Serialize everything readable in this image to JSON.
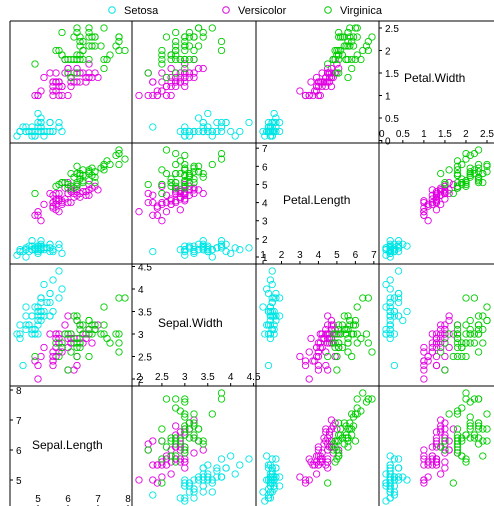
{
  "chart_data": {
    "type": "scatter",
    "layout": "scatterplot-matrix",
    "variables": [
      "Sepal.Length",
      "Sepal.Width",
      "Petal.Length",
      "Petal.Width"
    ],
    "diagonal_labels": [
      "Petal.Width",
      "Petal.Length",
      "Sepal.Width",
      "Sepal.Length"
    ],
    "legend": {
      "placement": "top",
      "entries": [
        {
          "name": "Setosa",
          "color": "#00e5e5"
        },
        {
          "name": "Versicolor",
          "color": "#e100e1"
        },
        {
          "name": "Virginica",
          "color": "#00cc00"
        }
      ]
    },
    "ranges": {
      "Sepal.Length": [
        4.3,
        7.9
      ],
      "Sepal.Width": [
        2.0,
        4.4
      ],
      "Petal.Length": [
        1.0,
        6.9
      ],
      "Petal.Width": [
        0.1,
        2.5
      ]
    },
    "ticks": {
      "Sepal.Length": {
        "left": [
          "5",
          "6",
          "7",
          "8"
        ],
        "bottom": [
          "5",
          "6",
          "7",
          "8"
        ]
      },
      "Sepal.Width": {
        "left": [
          "2",
          "2.5",
          "3",
          "3.5",
          "4",
          "4.5"
        ],
        "bottom": [
          "2",
          "2.5",
          "3",
          "3.5",
          "4",
          "4.5"
        ]
      },
      "Petal.Length": {
        "left": [
          "1",
          "2",
          "3",
          "4",
          "5",
          "6",
          "7"
        ],
        "bottom": [
          "1",
          "2",
          "3",
          "4",
          "5",
          "6",
          "7"
        ]
      },
      "Petal.Width": {
        "left": [
          "0",
          "0.5",
          "1",
          "1.5",
          "2",
          "2.5"
        ],
        "bottom": [
          "0",
          "0.5",
          "1",
          "1.5",
          "2",
          "2.5"
        ]
      }
    },
    "series": [
      {
        "name": "Setosa",
        "color": "#00e5e5",
        "points": [
          [
            5.1,
            3.5,
            1.4,
            0.2
          ],
          [
            4.9,
            3.0,
            1.4,
            0.2
          ],
          [
            4.7,
            3.2,
            1.3,
            0.2
          ],
          [
            4.6,
            3.1,
            1.5,
            0.2
          ],
          [
            5.0,
            3.6,
            1.4,
            0.2
          ],
          [
            5.4,
            3.9,
            1.7,
            0.4
          ],
          [
            4.6,
            3.4,
            1.4,
            0.3
          ],
          [
            5.0,
            3.4,
            1.5,
            0.2
          ],
          [
            4.4,
            2.9,
            1.4,
            0.2
          ],
          [
            4.9,
            3.1,
            1.5,
            0.1
          ],
          [
            5.4,
            3.7,
            1.5,
            0.2
          ],
          [
            4.8,
            3.4,
            1.6,
            0.2
          ],
          [
            4.8,
            3.0,
            1.4,
            0.1
          ],
          [
            4.3,
            3.0,
            1.1,
            0.1
          ],
          [
            5.8,
            4.0,
            1.2,
            0.2
          ],
          [
            5.7,
            4.4,
            1.5,
            0.4
          ],
          [
            5.4,
            3.9,
            1.3,
            0.4
          ],
          [
            5.1,
            3.5,
            1.4,
            0.3
          ],
          [
            5.7,
            3.8,
            1.7,
            0.3
          ],
          [
            5.1,
            3.8,
            1.5,
            0.3
          ],
          [
            5.4,
            3.4,
            1.7,
            0.2
          ],
          [
            5.1,
            3.7,
            1.5,
            0.4
          ],
          [
            4.6,
            3.6,
            1.0,
            0.2
          ],
          [
            5.1,
            3.3,
            1.7,
            0.5
          ],
          [
            4.8,
            3.4,
            1.9,
            0.2
          ],
          [
            5.0,
            3.0,
            1.6,
            0.2
          ],
          [
            5.0,
            3.4,
            1.6,
            0.4
          ],
          [
            5.2,
            3.5,
            1.5,
            0.2
          ],
          [
            5.2,
            3.4,
            1.4,
            0.2
          ],
          [
            4.7,
            3.2,
            1.6,
            0.2
          ],
          [
            4.8,
            3.1,
            1.6,
            0.2
          ],
          [
            5.4,
            3.4,
            1.5,
            0.4
          ],
          [
            5.2,
            4.1,
            1.5,
            0.1
          ],
          [
            5.5,
            4.2,
            1.4,
            0.2
          ],
          [
            4.9,
            3.1,
            1.5,
            0.2
          ],
          [
            5.0,
            3.2,
            1.2,
            0.2
          ],
          [
            5.5,
            3.5,
            1.3,
            0.2
          ],
          [
            4.9,
            3.6,
            1.4,
            0.1
          ],
          [
            4.4,
            3.0,
            1.3,
            0.2
          ],
          [
            5.1,
            3.4,
            1.5,
            0.2
          ],
          [
            5.0,
            3.5,
            1.3,
            0.3
          ],
          [
            4.5,
            2.3,
            1.3,
            0.3
          ],
          [
            4.4,
            3.2,
            1.3,
            0.2
          ],
          [
            5.0,
            3.5,
            1.6,
            0.6
          ],
          [
            5.1,
            3.8,
            1.9,
            0.4
          ],
          [
            4.8,
            3.0,
            1.4,
            0.3
          ],
          [
            5.1,
            3.8,
            1.6,
            0.2
          ],
          [
            4.6,
            3.2,
            1.4,
            0.2
          ],
          [
            5.3,
            3.7,
            1.5,
            0.2
          ],
          [
            5.0,
            3.3,
            1.4,
            0.2
          ]
        ]
      },
      {
        "name": "Versicolor",
        "color": "#e100e1",
        "points": [
          [
            7.0,
            3.2,
            4.7,
            1.4
          ],
          [
            6.4,
            3.2,
            4.5,
            1.5
          ],
          [
            6.9,
            3.1,
            4.9,
            1.5
          ],
          [
            5.5,
            2.3,
            4.0,
            1.3
          ],
          [
            6.5,
            2.8,
            4.6,
            1.5
          ],
          [
            5.7,
            2.8,
            4.5,
            1.3
          ],
          [
            6.3,
            3.3,
            4.7,
            1.6
          ],
          [
            4.9,
            2.4,
            3.3,
            1.0
          ],
          [
            6.6,
            2.9,
            4.6,
            1.3
          ],
          [
            5.2,
            2.7,
            3.9,
            1.4
          ],
          [
            5.0,
            2.0,
            3.5,
            1.0
          ],
          [
            5.9,
            3.0,
            4.2,
            1.5
          ],
          [
            6.0,
            2.2,
            4.0,
            1.0
          ],
          [
            6.1,
            2.9,
            4.7,
            1.4
          ],
          [
            5.6,
            2.9,
            3.6,
            1.3
          ],
          [
            6.7,
            3.1,
            4.4,
            1.4
          ],
          [
            5.6,
            3.0,
            4.5,
            1.5
          ],
          [
            5.8,
            2.7,
            4.1,
            1.0
          ],
          [
            6.2,
            2.2,
            4.5,
            1.5
          ],
          [
            5.6,
            2.5,
            3.9,
            1.1
          ],
          [
            5.9,
            3.2,
            4.8,
            1.8
          ],
          [
            6.1,
            2.8,
            4.0,
            1.3
          ],
          [
            6.3,
            2.5,
            4.9,
            1.5
          ],
          [
            6.1,
            2.8,
            4.7,
            1.2
          ],
          [
            6.4,
            2.9,
            4.3,
            1.3
          ],
          [
            6.6,
            3.0,
            4.4,
            1.4
          ],
          [
            6.8,
            2.8,
            4.8,
            1.4
          ],
          [
            6.7,
            3.0,
            5.0,
            1.7
          ],
          [
            6.0,
            2.9,
            4.5,
            1.5
          ],
          [
            5.7,
            2.6,
            3.5,
            1.0
          ],
          [
            5.5,
            2.4,
            3.8,
            1.1
          ],
          [
            5.5,
            2.4,
            3.7,
            1.0
          ],
          [
            5.8,
            2.7,
            3.9,
            1.2
          ],
          [
            6.0,
            2.7,
            5.1,
            1.6
          ],
          [
            5.4,
            3.0,
            4.5,
            1.5
          ],
          [
            6.0,
            3.4,
            4.5,
            1.6
          ],
          [
            6.7,
            3.1,
            4.7,
            1.5
          ],
          [
            6.3,
            2.3,
            4.4,
            1.3
          ],
          [
            5.6,
            3.0,
            4.1,
            1.3
          ],
          [
            5.5,
            2.5,
            4.0,
            1.3
          ],
          [
            5.5,
            2.6,
            4.4,
            1.2
          ],
          [
            6.1,
            3.0,
            4.6,
            1.4
          ],
          [
            5.8,
            2.6,
            4.0,
            1.2
          ],
          [
            5.0,
            2.3,
            3.3,
            1.0
          ],
          [
            5.6,
            2.7,
            4.2,
            1.3
          ],
          [
            5.7,
            3.0,
            4.2,
            1.2
          ],
          [
            5.7,
            2.9,
            4.2,
            1.3
          ],
          [
            6.2,
            2.9,
            4.3,
            1.3
          ],
          [
            5.1,
            2.5,
            3.0,
            1.1
          ],
          [
            5.7,
            2.8,
            4.1,
            1.3
          ]
        ]
      },
      {
        "name": "Virginica",
        "color": "#00cc00",
        "points": [
          [
            6.3,
            3.3,
            6.0,
            2.5
          ],
          [
            5.8,
            2.7,
            5.1,
            1.9
          ],
          [
            7.1,
            3.0,
            5.9,
            2.1
          ],
          [
            6.3,
            2.9,
            5.6,
            1.8
          ],
          [
            6.5,
            3.0,
            5.8,
            2.2
          ],
          [
            7.6,
            3.0,
            6.6,
            2.1
          ],
          [
            4.9,
            2.5,
            4.5,
            1.7
          ],
          [
            7.3,
            2.9,
            6.3,
            1.8
          ],
          [
            6.7,
            2.5,
            5.8,
            1.8
          ],
          [
            7.2,
            3.6,
            6.1,
            2.5
          ],
          [
            6.5,
            3.2,
            5.1,
            2.0
          ],
          [
            6.4,
            2.7,
            5.3,
            1.9
          ],
          [
            6.8,
            3.0,
            5.5,
            2.1
          ],
          [
            5.7,
            2.5,
            5.0,
            2.0
          ],
          [
            5.8,
            2.8,
            5.1,
            2.4
          ],
          [
            6.4,
            3.2,
            5.3,
            2.3
          ],
          [
            6.5,
            3.0,
            5.5,
            1.8
          ],
          [
            7.7,
            3.8,
            6.7,
            2.2
          ],
          [
            7.7,
            2.6,
            6.9,
            2.3
          ],
          [
            6.0,
            2.2,
            5.0,
            1.5
          ],
          [
            6.9,
            3.2,
            5.7,
            2.3
          ],
          [
            5.6,
            2.8,
            4.9,
            2.0
          ],
          [
            7.7,
            2.8,
            6.7,
            2.0
          ],
          [
            6.3,
            2.7,
            4.9,
            1.8
          ],
          [
            6.7,
            3.3,
            5.7,
            2.1
          ],
          [
            7.2,
            3.2,
            6.0,
            1.8
          ],
          [
            6.2,
            2.8,
            4.8,
            1.8
          ],
          [
            6.1,
            3.0,
            4.9,
            1.8
          ],
          [
            6.4,
            2.8,
            5.6,
            2.1
          ],
          [
            7.2,
            3.0,
            5.8,
            1.6
          ],
          [
            7.4,
            2.8,
            6.1,
            1.9
          ],
          [
            7.9,
            3.8,
            6.4,
            2.0
          ],
          [
            6.4,
            2.8,
            5.6,
            2.2
          ],
          [
            6.3,
            2.8,
            5.1,
            1.5
          ],
          [
            6.1,
            2.6,
            5.6,
            1.4
          ],
          [
            7.7,
            3.0,
            6.1,
            2.3
          ],
          [
            6.3,
            3.4,
            5.6,
            2.4
          ],
          [
            6.4,
            3.1,
            5.5,
            1.8
          ],
          [
            6.0,
            3.0,
            4.8,
            1.8
          ],
          [
            6.9,
            3.1,
            5.4,
            2.1
          ],
          [
            6.7,
            3.1,
            5.6,
            2.4
          ],
          [
            6.9,
            3.1,
            5.1,
            2.3
          ],
          [
            5.8,
            2.7,
            5.1,
            1.9
          ],
          [
            6.8,
            3.2,
            5.9,
            2.3
          ],
          [
            6.7,
            3.3,
            5.7,
            2.5
          ],
          [
            6.7,
            3.0,
            5.2,
            2.3
          ],
          [
            6.3,
            2.5,
            5.0,
            1.9
          ],
          [
            6.5,
            3.0,
            5.2,
            2.0
          ],
          [
            6.2,
            3.4,
            5.4,
            2.3
          ],
          [
            5.9,
            3.0,
            5.1,
            1.8
          ]
        ]
      }
    ]
  }
}
